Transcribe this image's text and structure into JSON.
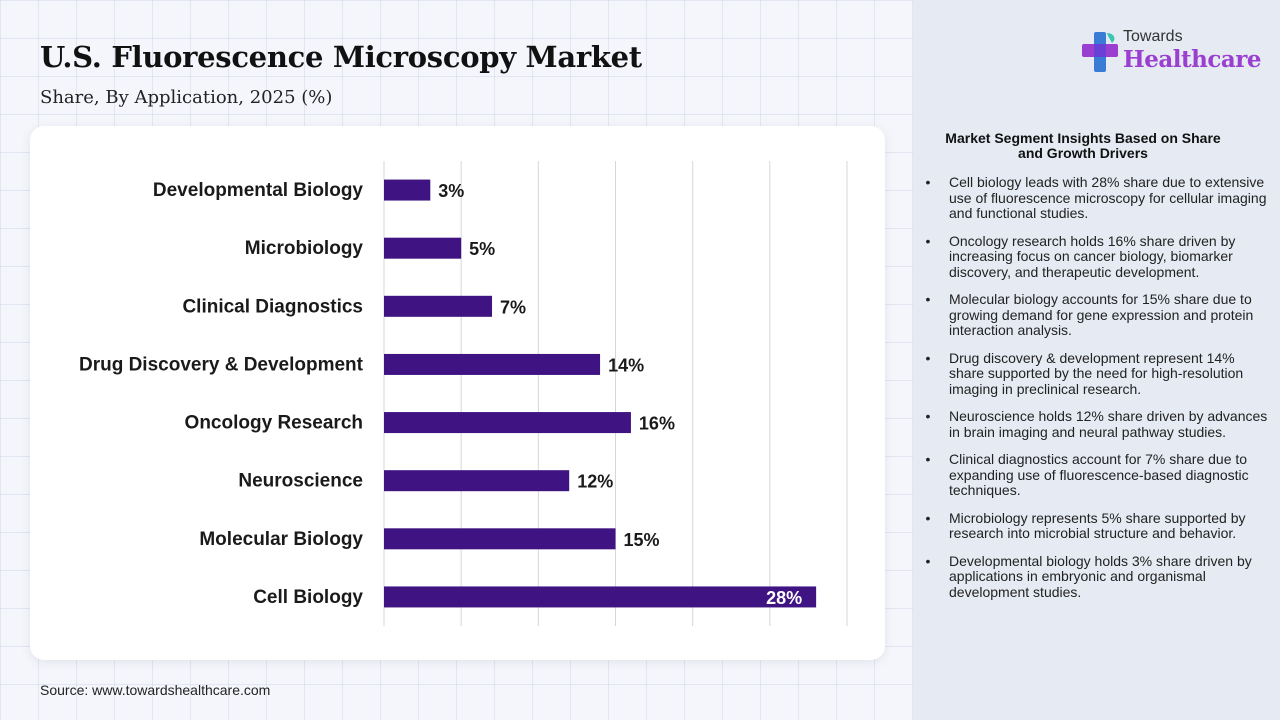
{
  "title": "U.S. Fluorescence Microscopy Market",
  "subtitle": "Share, By Application, 2025 (%)",
  "source": "Source: www.towardshealthcare.com",
  "brand": {
    "top": "Towards",
    "main": "Healthcare",
    "colors": {
      "logo_purple": "#9b3fd0",
      "logo_blue": "#3a7bd5",
      "logo_teal": "#39c7b0"
    }
  },
  "colors": {
    "bar": "#3f1382",
    "grid": "#d7d7d7",
    "panel_bg": "#e5eaf3"
  },
  "chart_data": {
    "type": "bar",
    "orientation": "horizontal",
    "categories": [
      "Developmental Biology",
      "Microbiology",
      "Clinical Diagnostics",
      "Drug Discovery & Development",
      "Oncology Research",
      "Neuroscience",
      "Molecular Biology",
      "Cell Biology"
    ],
    "values": [
      3,
      5,
      7,
      14,
      16,
      12,
      15,
      28
    ],
    "value_labels": [
      "3%",
      "5%",
      "7%",
      "14%",
      "16%",
      "12%",
      "15%",
      "28%"
    ],
    "xlim": [
      0,
      30
    ],
    "grid": true,
    "title": "",
    "xlabel": "",
    "ylabel": ""
  },
  "panel": {
    "heading": "Market Segment Insights Based on Share and Growth Drivers",
    "bullet": "•",
    "items": [
      "Cell biology leads with 28% share due to extensive use of fluorescence microscopy for cellular imaging and functional studies.",
      "Oncology research holds 16% share driven by increasing focus on cancer biology, biomarker discovery, and therapeutic development.",
      "Molecular biology accounts for 15% share due to growing demand for gene expression and protein interaction analysis.",
      "Drug discovery & development represent 14% share supported by the need for high-resolution imaging in preclinical research.",
      "Neuroscience holds 12% share driven by advances in brain imaging and neural pathway studies.",
      "Clinical diagnostics account for 7% share due to expanding use of fluorescence-based diagnostic techniques.",
      "Microbiology represents 5% share supported by research into microbial structure and behavior.",
      "Developmental biology holds 3% share driven by applications in embryonic and organismal development studies."
    ]
  }
}
